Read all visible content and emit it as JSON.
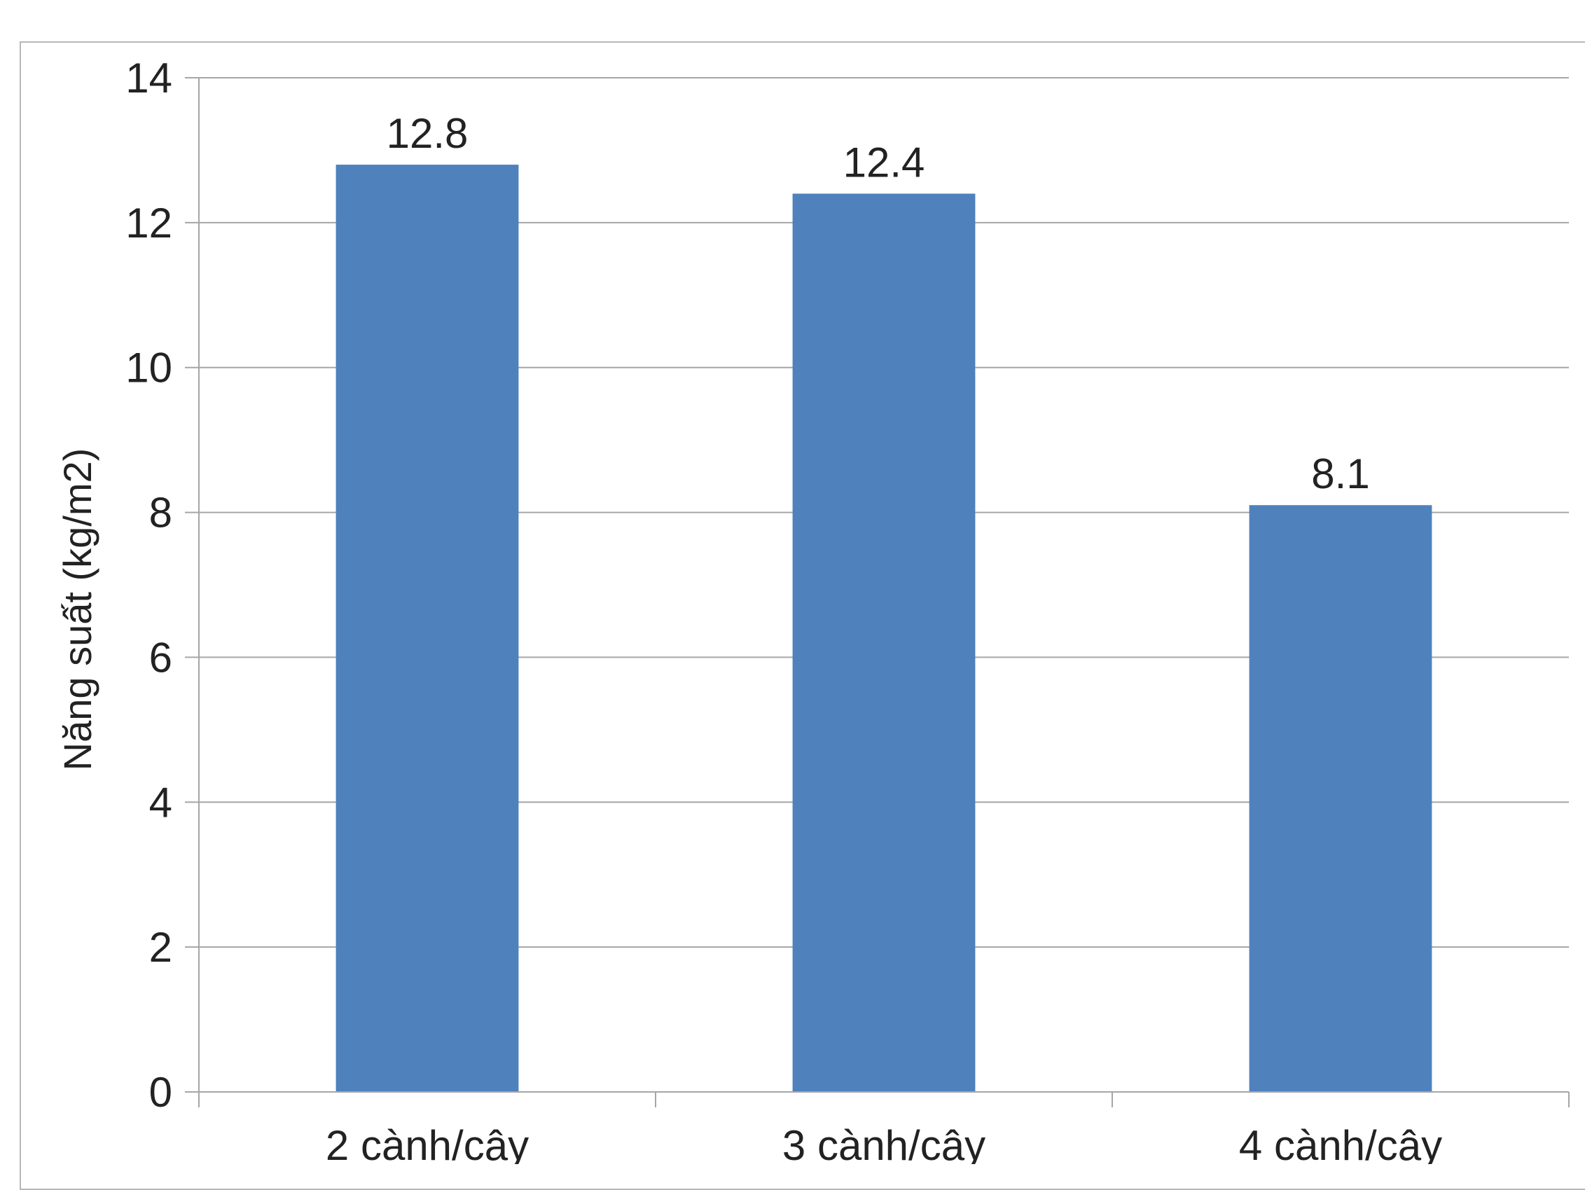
{
  "chart_data": {
    "type": "bar",
    "title": "",
    "xlabel": "",
    "ylabel": "Năng suất (kg/m2)",
    "categories": [
      "2 cành/cây",
      "3 cành/cây",
      "4 cành/cây"
    ],
    "values": [
      12.8,
      12.4,
      8.1
    ],
    "data_labels": [
      "12.8",
      "12.4",
      "8.1"
    ],
    "ylim": [
      0,
      14
    ],
    "yticks": [
      0,
      2,
      4,
      6,
      8,
      10,
      12,
      14
    ],
    "grid": true,
    "legend": "none",
    "colors": {
      "bar": "#4F81BD",
      "grid": "#a6a6a6",
      "axis": "#a6a6a6",
      "text": "#222222"
    }
  }
}
